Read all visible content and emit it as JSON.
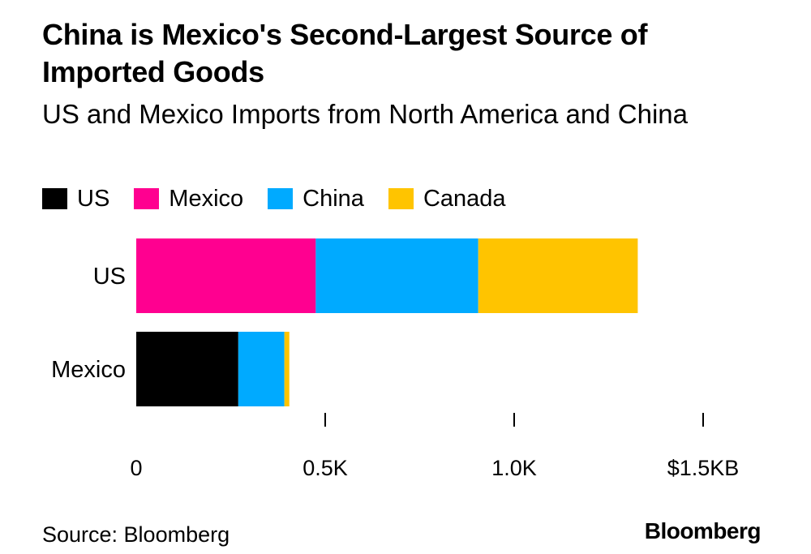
{
  "header": {
    "title": "China is Mexico's Second-Largest Source of Imported Goods",
    "subtitle": "US and Mexico Imports from North America and China"
  },
  "footer": {
    "source": "Source: Bloomberg",
    "brand": "Bloomberg"
  },
  "chart_data": {
    "type": "bar",
    "orientation": "horizontal",
    "stacked": true,
    "title": "China is Mexico's Second-Largest Source of Imported Goods",
    "subtitle": "US and Mexico Imports from North America and China",
    "categories": [
      "US",
      "Mexico"
    ],
    "series": [
      {
        "name": "US",
        "color": "#000000",
        "values": [
          0,
          270
        ]
      },
      {
        "name": "Mexico",
        "color": "#FF0090",
        "values": [
          475,
          0
        ]
      },
      {
        "name": "China",
        "color": "#00AAFF",
        "values": [
          430,
          122
        ]
      },
      {
        "name": "Canada",
        "color": "#FFC400",
        "values": [
          422,
          13
        ]
      }
    ],
    "xlim": [
      0,
      1500
    ],
    "xticks": [
      0,
      500,
      1000,
      1500
    ],
    "xtick_labels": [
      "0",
      "0.5K",
      "1.0K",
      "$1.5KB"
    ],
    "xlabel": "",
    "ylabel": "",
    "grid": false,
    "legend_position": "top"
  }
}
